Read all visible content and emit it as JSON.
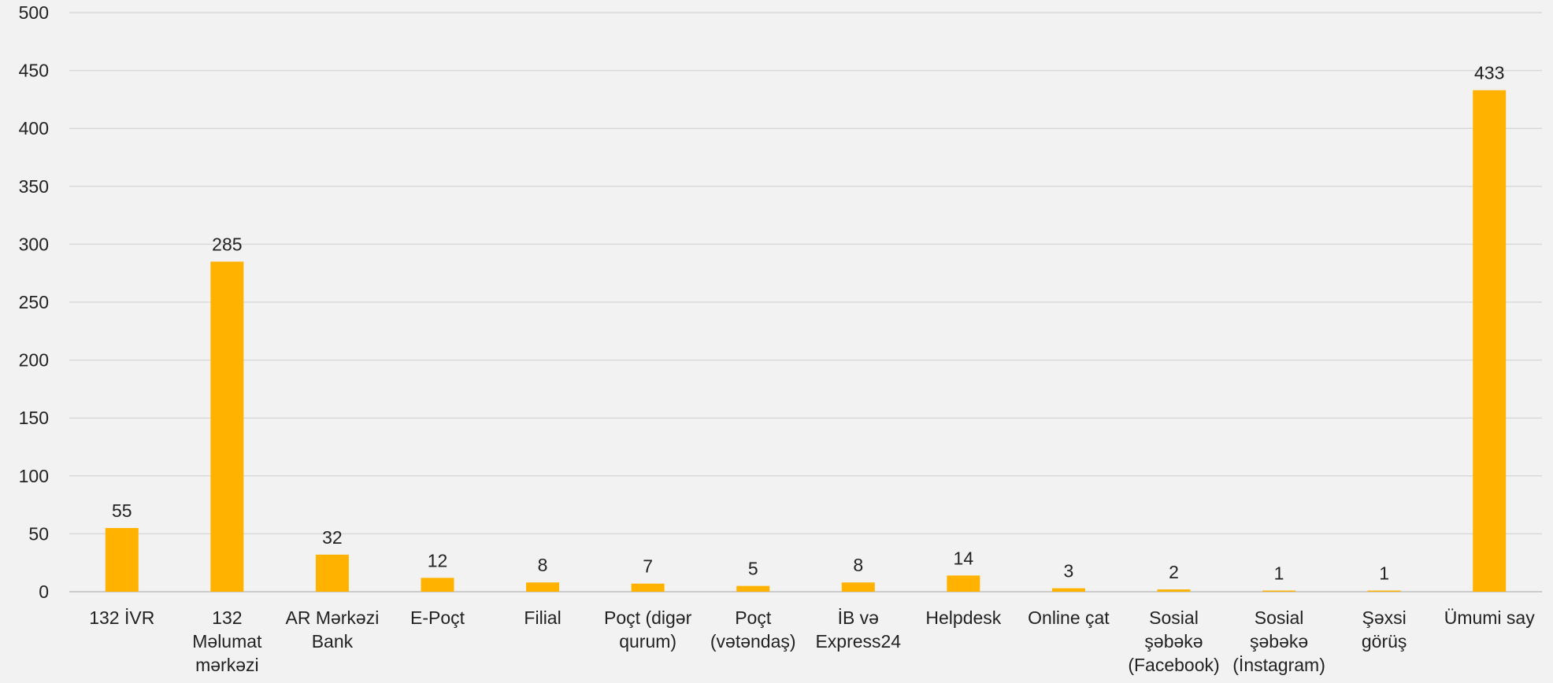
{
  "chart_data": {
    "type": "bar",
    "title": "",
    "xlabel": "",
    "ylabel": "",
    "ylim": [
      0,
      500
    ],
    "yticks": [
      0,
      50,
      100,
      150,
      200,
      250,
      300,
      350,
      400,
      450,
      500
    ],
    "grid": true,
    "legend": "none",
    "bar_color": "#ffb300",
    "categories": [
      [
        "132 İVR"
      ],
      [
        "132",
        "Məlumat",
        "mərkəzi"
      ],
      [
        "AR Mərkəzi",
        "Bank"
      ],
      [
        "E-Poçt"
      ],
      [
        "Filial"
      ],
      [
        "Poçt (digər",
        "qurum)"
      ],
      [
        "Poçt",
        "(vətəndaş)"
      ],
      [
        "İB və",
        "Express24"
      ],
      [
        "Helpdesk"
      ],
      [
        "Online çat"
      ],
      [
        "Sosial",
        "şəbəkə",
        "(Facebook)"
      ],
      [
        "Sosial",
        "şəbəkə",
        "(İnstagram)"
      ],
      [
        "Şəxsi",
        "görüş"
      ],
      [
        "Ümumi say"
      ]
    ],
    "values": [
      55,
      285,
      32,
      12,
      8,
      7,
      5,
      8,
      14,
      3,
      2,
      1,
      1,
      433
    ]
  }
}
